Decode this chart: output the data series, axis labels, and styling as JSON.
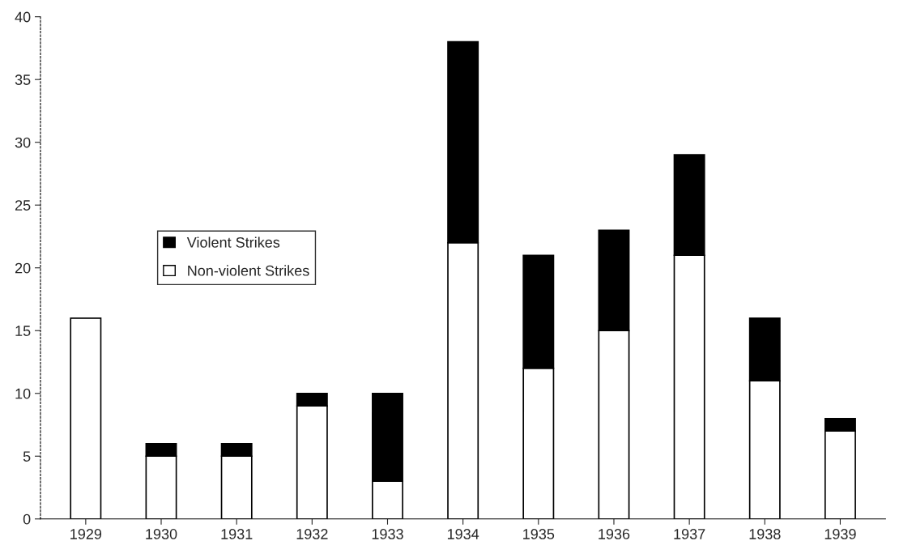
{
  "chart_data": {
    "type": "bar",
    "stacked": true,
    "categories": [
      "1929",
      "1930",
      "1931",
      "1932",
      "1933",
      "1934",
      "1935",
      "1936",
      "1937",
      "1938",
      "1939"
    ],
    "series": [
      {
        "name": "Non-violent Strikes",
        "color": "#ffffff",
        "values": [
          16,
          5,
          5,
          9,
          3,
          22,
          12,
          15,
          21,
          11,
          7
        ]
      },
      {
        "name": "Violent Strikes",
        "color": "#000000",
        "values": [
          0,
          1,
          1,
          1,
          7,
          16,
          9,
          8,
          8,
          5,
          1
        ]
      }
    ],
    "ylim": [
      0,
      40
    ],
    "yticks": [
      0,
      5,
      10,
      15,
      20,
      25,
      30,
      35,
      40
    ],
    "grid": false,
    "legend": "center left"
  }
}
